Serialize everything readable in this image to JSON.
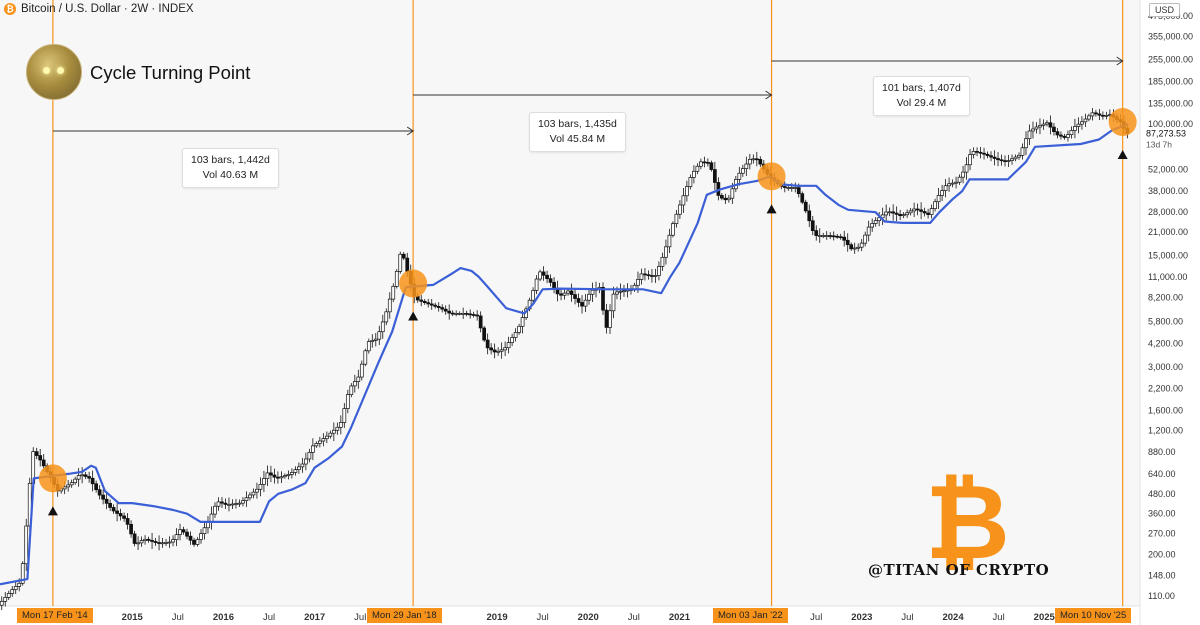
{
  "header": {
    "symbol_title": "Bitcoin / U.S. Dollar · 2W · INDEX",
    "currency": "USD",
    "coin_glyph": "₿"
  },
  "overlay": {
    "title": "Cycle Turning Point",
    "watermark": "@TITAN OF CRYPTO",
    "logo_glyph": "₿",
    "logo_color": "#f7931a"
  },
  "colors": {
    "background": "#f7f7f7",
    "up_candle": "#ffffff",
    "down_candle": "#111111",
    "ma_line": "#3b5fd6",
    "vertical_marker": "#f7931a",
    "highlight_circle": "#f7931a"
  },
  "measurements": [
    {
      "line1": "103 bars, 1,442d",
      "line2": "Vol 40.63 M"
    },
    {
      "line1": "103 bars, 1,435d",
      "line2": "Vol 45.84 M"
    },
    {
      "line1": "101 bars, 1,407d",
      "line2": "Vol 29.4 M"
    }
  ],
  "current_price": {
    "value": "87,273.53",
    "countdown": "13d 7h"
  },
  "markers": [
    {
      "date": "Mon 17 Feb '14",
      "year": 2014.13,
      "price": 600
    },
    {
      "date": "Mon 29 Jan '18",
      "year": 2018.08,
      "price": 10000
    },
    {
      "date": "Mon 03 Jan '22",
      "year": 2022.01,
      "price": 47000
    },
    {
      "date": "Mon 10 Nov '25",
      "year": 2025.86,
      "price": 103000
    }
  ],
  "chart_data": {
    "type": "candlestick",
    "title": "Bitcoin / U.S. Dollar · 2W · INDEX",
    "y_scale": "log",
    "xlim": [
      2013.55,
      2026.05
    ],
    "ylim": [
      95,
      600000
    ],
    "y_ticks": [
      {
        "label": "110.00",
        "v": 110
      },
      {
        "label": "148.00",
        "v": 148
      },
      {
        "label": "200.00",
        "v": 200
      },
      {
        "label": "270.00",
        "v": 270
      },
      {
        "label": "360.00",
        "v": 360
      },
      {
        "label": "480.00",
        "v": 480
      },
      {
        "label": "640.00",
        "v": 640
      },
      {
        "label": "880.00",
        "v": 880
      },
      {
        "label": "1,200.00",
        "v": 1200
      },
      {
        "label": "1,600.00",
        "v": 1600
      },
      {
        "label": "2,200.00",
        "v": 2200
      },
      {
        "label": "3,000.00",
        "v": 3000
      },
      {
        "label": "4,200.00",
        "v": 4200
      },
      {
        "label": "5,800.00",
        "v": 5800
      },
      {
        "label": "8,200.00",
        "v": 8200
      },
      {
        "label": "11,000.00",
        "v": 11000
      },
      {
        "label": "15,000.00",
        "v": 15000
      },
      {
        "label": "21,000.00",
        "v": 21000
      },
      {
        "label": "28,000.00",
        "v": 28000
      },
      {
        "label": "38,000.00",
        "v": 38000
      },
      {
        "label": "52,000.00",
        "v": 52000
      },
      {
        "label": "100,000.00",
        "v": 100000
      },
      {
        "label": "135,000.00",
        "v": 135000
      },
      {
        "label": "185,000.00",
        "v": 185000
      },
      {
        "label": "255,000.00",
        "v": 255000
      },
      {
        "label": "355,000.00",
        "v": 355000
      },
      {
        "label": "475,000.00",
        "v": 475000
      }
    ],
    "x_ticks": [
      {
        "label": "Jul",
        "x": 2013.5
      },
      {
        "label": "2015",
        "x": 2015.0
      },
      {
        "label": "Jul",
        "x": 2015.5
      },
      {
        "label": "2016",
        "x": 2016.0
      },
      {
        "label": "Jul",
        "x": 2016.5
      },
      {
        "label": "2017",
        "x": 2017.0
      },
      {
        "label": "Jul",
        "x": 2017.5
      },
      {
        "label": "2019",
        "x": 2019.0
      },
      {
        "label": "Jul",
        "x": 2019.5
      },
      {
        "label": "2020",
        "x": 2020.0
      },
      {
        "label": "Jul",
        "x": 2020.5
      },
      {
        "label": "2021",
        "x": 2021.0
      },
      {
        "label": "Jul",
        "x": 2022.5
      },
      {
        "label": "2023",
        "x": 2023.0
      },
      {
        "label": "Jul",
        "x": 2023.5
      },
      {
        "label": "2024",
        "x": 2024.0
      },
      {
        "label": "Jul",
        "x": 2024.5
      },
      {
        "label": "2025",
        "x": 2025.0
      },
      {
        "label": "Jul",
        "x": 2025.5
      }
    ],
    "price_path": [
      [
        2013.55,
        96
      ],
      [
        2013.7,
        120
      ],
      [
        2013.8,
        135
      ],
      [
        2013.88,
        420
      ],
      [
        2013.92,
        900
      ],
      [
        2014.0,
        800
      ],
      [
        2014.13,
        600
      ],
      [
        2014.2,
        500
      ],
      [
        2014.35,
        560
      ],
      [
        2014.45,
        640
      ],
      [
        2014.55,
        600
      ],
      [
        2014.65,
        480
      ],
      [
        2014.8,
        380
      ],
      [
        2014.95,
        330
      ],
      [
        2015.05,
        230
      ],
      [
        2015.15,
        250
      ],
      [
        2015.3,
        235
      ],
      [
        2015.45,
        240
      ],
      [
        2015.55,
        290
      ],
      [
        2015.7,
        230
      ],
      [
        2015.85,
        320
      ],
      [
        2015.95,
        430
      ],
      [
        2016.05,
        410
      ],
      [
        2016.2,
        420
      ],
      [
        2016.4,
        520
      ],
      [
        2016.5,
        650
      ],
      [
        2016.6,
        600
      ],
      [
        2016.75,
        640
      ],
      [
        2016.9,
        750
      ],
      [
        2017.0,
        960
      ],
      [
        2017.15,
        1100
      ],
      [
        2017.3,
        1300
      ],
      [
        2017.4,
        2200
      ],
      [
        2017.5,
        2600
      ],
      [
        2017.6,
        4300
      ],
      [
        2017.7,
        4500
      ],
      [
        2017.8,
        6500
      ],
      [
        2017.9,
        10500
      ],
      [
        2017.97,
        16500
      ],
      [
        2018.05,
        11000
      ],
      [
        2018.12,
        8000
      ],
      [
        2018.25,
        7500
      ],
      [
        2018.4,
        7000
      ],
      [
        2018.5,
        6500
      ],
      [
        2018.65,
        6500
      ],
      [
        2018.8,
        6300
      ],
      [
        2018.9,
        4000
      ],
      [
        2019.0,
        3700
      ],
      [
        2019.1,
        3900
      ],
      [
        2019.25,
        5200
      ],
      [
        2019.4,
        8500
      ],
      [
        2019.48,
        12000
      ],
      [
        2019.6,
        10300
      ],
      [
        2019.7,
        8300
      ],
      [
        2019.8,
        9000
      ],
      [
        2019.95,
        7200
      ],
      [
        2020.05,
        9000
      ],
      [
        2020.15,
        9500
      ],
      [
        2020.21,
        5000
      ],
      [
        2020.3,
        8800
      ],
      [
        2020.5,
        9200
      ],
      [
        2020.6,
        11500
      ],
      [
        2020.75,
        11000
      ],
      [
        2020.85,
        15500
      ],
      [
        2020.95,
        24000
      ],
      [
        2021.05,
        34000
      ],
      [
        2021.15,
        48000
      ],
      [
        2021.25,
        58000
      ],
      [
        2021.35,
        57000
      ],
      [
        2021.45,
        35000
      ],
      [
        2021.55,
        33000
      ],
      [
        2021.65,
        47000
      ],
      [
        2021.8,
        61000
      ],
      [
        2021.87,
        60000
      ],
      [
        2022.0,
        47000
      ],
      [
        2022.15,
        40000
      ],
      [
        2022.3,
        40000
      ],
      [
        2022.4,
        29000
      ],
      [
        2022.5,
        20000
      ],
      [
        2022.65,
        20000
      ],
      [
        2022.8,
        19500
      ],
      [
        2022.9,
        16500
      ],
      [
        2023.0,
        17000
      ],
      [
        2023.1,
        23000
      ],
      [
        2023.3,
        28500
      ],
      [
        2023.45,
        26500
      ],
      [
        2023.6,
        29500
      ],
      [
        2023.75,
        27000
      ],
      [
        2023.85,
        35000
      ],
      [
        2023.95,
        42000
      ],
      [
        2024.05,
        43000
      ],
      [
        2024.15,
        52000
      ],
      [
        2024.22,
        68000
      ],
      [
        2024.35,
        65000
      ],
      [
        2024.5,
        60000
      ],
      [
        2024.6,
        58000
      ],
      [
        2024.75,
        64000
      ],
      [
        2024.85,
        90000
      ],
      [
        2024.95,
        97000
      ],
      [
        2025.05,
        102000
      ],
      [
        2025.15,
        86000
      ],
      [
        2025.25,
        82000
      ],
      [
        2025.35,
        96000
      ],
      [
        2025.45,
        105000
      ],
      [
        2025.55,
        118000
      ],
      [
        2025.65,
        112000
      ],
      [
        2025.75,
        115000
      ],
      [
        2025.8,
        108000
      ],
      [
        2025.86,
        103000
      ],
      [
        2025.92,
        87273
      ]
    ],
    "ma_path": [
      [
        2013.55,
        130
      ],
      [
        2013.85,
        140
      ],
      [
        2013.92,
        600
      ],
      [
        2014.3,
        640
      ],
      [
        2014.45,
        660
      ],
      [
        2014.55,
        720
      ],
      [
        2014.6,
        700
      ],
      [
        2014.7,
        500
      ],
      [
        2014.85,
        420
      ],
      [
        2015.0,
        420
      ],
      [
        2015.25,
        400
      ],
      [
        2015.45,
        380
      ],
      [
        2015.6,
        360
      ],
      [
        2015.75,
        320
      ],
      [
        2016.4,
        320
      ],
      [
        2016.5,
        430
      ],
      [
        2016.6,
        480
      ],
      [
        2016.75,
        510
      ],
      [
        2016.9,
        560
      ],
      [
        2017.0,
        700
      ],
      [
        2017.15,
        800
      ],
      [
        2017.3,
        950
      ],
      [
        2017.4,
        1250
      ],
      [
        2017.55,
        2000
      ],
      [
        2017.7,
        3200
      ],
      [
        2017.85,
        5000
      ],
      [
        2018.0,
        9500
      ],
      [
        2018.3,
        9800
      ],
      [
        2018.5,
        11500
      ],
      [
        2018.6,
        12500
      ],
      [
        2018.72,
        12000
      ],
      [
        2018.8,
        11000
      ],
      [
        2018.9,
        9500
      ],
      [
        2019.1,
        7000
      ],
      [
        2019.3,
        6500
      ],
      [
        2019.4,
        7500
      ],
      [
        2019.5,
        9200
      ],
      [
        2019.7,
        9300
      ],
      [
        2020.2,
        9200
      ],
      [
        2020.6,
        9200
      ],
      [
        2020.8,
        8700
      ],
      [
        2020.9,
        11000
      ],
      [
        2021.0,
        13500
      ],
      [
        2021.1,
        18000
      ],
      [
        2021.2,
        24000
      ],
      [
        2021.3,
        36000
      ],
      [
        2021.45,
        39000
      ],
      [
        2021.65,
        42000
      ],
      [
        2021.85,
        44000
      ],
      [
        2022.0,
        47000
      ],
      [
        2022.1,
        42000
      ],
      [
        2022.3,
        41000
      ],
      [
        2022.5,
        41000
      ],
      [
        2022.6,
        36000
      ],
      [
        2022.75,
        31000
      ],
      [
        2022.85,
        29000
      ],
      [
        2023.15,
        28000
      ],
      [
        2023.25,
        24500
      ],
      [
        2023.45,
        24000
      ],
      [
        2023.75,
        24000
      ],
      [
        2023.85,
        28000
      ],
      [
        2024.0,
        34000
      ],
      [
        2024.1,
        38000
      ],
      [
        2024.18,
        45000
      ],
      [
        2024.6,
        45000
      ],
      [
        2024.8,
        58000
      ],
      [
        2024.9,
        72000
      ],
      [
        2025.4,
        75000
      ],
      [
        2025.6,
        80000
      ],
      [
        2025.75,
        92000
      ],
      [
        2025.92,
        100000
      ]
    ]
  }
}
